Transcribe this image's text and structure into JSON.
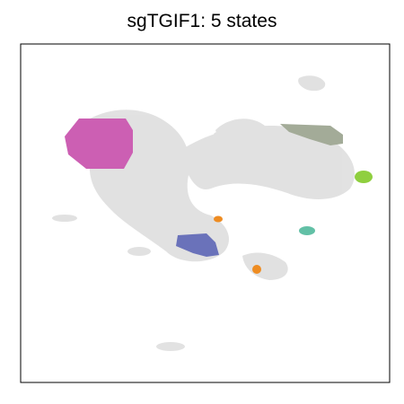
{
  "chart_data": {
    "type": "scatter",
    "title": "sgTGIF1: 5 states",
    "xlabel": "",
    "ylabel": "",
    "axis_ticks": false,
    "grid": false,
    "legend": "none",
    "background_color": "#e0e0e0",
    "series": [
      {
        "color": "#cc5fb3",
        "region": "upper-left cluster"
      },
      {
        "color": "#a3ab98",
        "region": "upper-right cluster"
      },
      {
        "color": "#8fcf3f",
        "region": "far-right small cluster"
      },
      {
        "color": "#6a72ba",
        "region": "lower-middle cluster"
      },
      {
        "color": "#62c0a6",
        "region": "right-middle small cluster"
      },
      {
        "color": "#ee8c22",
        "region": "two small clusters (middle and lower)"
      }
    ]
  }
}
